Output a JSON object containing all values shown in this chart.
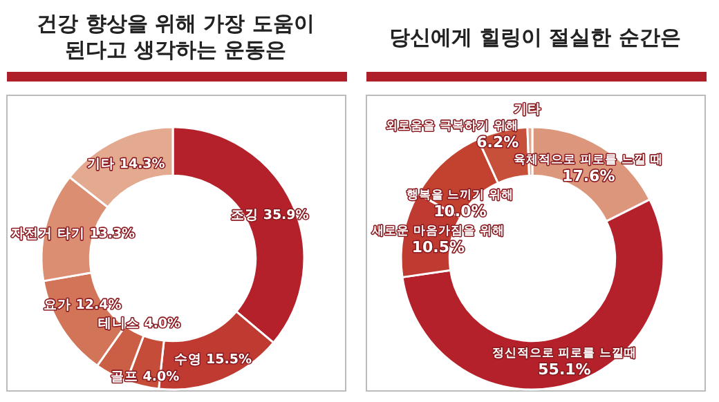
{
  "chart_data": [
    {
      "type": "donut",
      "title": "건강 향상을 위해 가장 도움이 된다고 생각하는 운동은",
      "categories": [
        "조깅",
        "수영",
        "골프",
        "테니스",
        "요가",
        "자전거 타기",
        "기타"
      ],
      "values": [
        35.9,
        15.5,
        4.0,
        4.0,
        12.4,
        13.3,
        14.3
      ],
      "value_labels": [
        "35.9%",
        "15.5%",
        "4.0%",
        "4.0%",
        "12.4%",
        "13.3%",
        "14.3%"
      ],
      "colors": [
        "#b5212a",
        "#bf3a30",
        "#c44c38",
        "#cb5f45",
        "#d27457",
        "#db8e72",
        "#e4aa90"
      ]
    },
    {
      "type": "donut",
      "title": "당신에게 힐링이 절실한 순간은",
      "categories": [
        "육체적으로 피로를 느낄 때",
        "정신적으로 피로를 느낄때",
        "새로운 마음가짐을 위해",
        "행복을 느끼기 위해",
        "외로움을 극복하기 위해",
        "기타"
      ],
      "values": [
        17.6,
        55.1,
        10.5,
        10.0,
        6.2,
        0.6
      ],
      "value_labels": [
        "17.6%",
        "55.1%",
        "10.5%",
        "10.0%",
        "6.2%",
        null
      ],
      "colors": [
        "#dc967b",
        "#b5212a",
        "#bf3a30",
        "#c2412f",
        "#c7503a",
        "#e3a58c"
      ]
    }
  ]
}
